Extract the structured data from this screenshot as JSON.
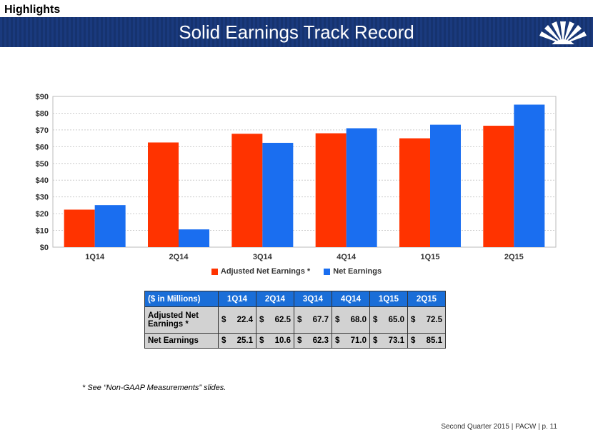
{
  "header": {
    "section": "Highlights",
    "title": "Solid Earnings Track Record"
  },
  "chart_data": {
    "type": "bar",
    "categories": [
      "1Q14",
      "2Q14",
      "3Q14",
      "4Q14",
      "1Q15",
      "2Q15"
    ],
    "series": [
      {
        "name": "Adjusted Net Earnings *",
        "color": "#ff3300",
        "values": [
          22.4,
          62.5,
          67.7,
          68.0,
          65.0,
          72.5
        ]
      },
      {
        "name": "Net Earnings",
        "color": "#1a6ef0",
        "values": [
          25.1,
          10.6,
          62.3,
          71.0,
          73.1,
          85.1
        ]
      }
    ],
    "ylim": [
      0,
      90
    ],
    "yticks": [
      "$0",
      "$10",
      "$20",
      "$30",
      "$40",
      "$50",
      "$60",
      "$70",
      "$80",
      "$90"
    ],
    "grid": true,
    "legend": "bottom"
  },
  "table": {
    "header": [
      "($ in Millions)",
      "1Q14",
      "2Q14",
      "3Q14",
      "4Q14",
      "1Q15",
      "2Q15"
    ],
    "currency": "$",
    "rows": [
      {
        "label": "Adjusted Net Earnings *",
        "values": [
          "22.4",
          "62.5",
          "67.7",
          "68.0",
          "65.0",
          "72.5"
        ]
      },
      {
        "label": "Net Earnings",
        "values": [
          "25.1",
          "10.6",
          "62.3",
          "71.0",
          "73.1",
          "85.1"
        ]
      }
    ]
  },
  "footnote": "* See “Non-GAAP Measurements” slides.",
  "footer": "Second Quarter 2015 | PACW | p. 11"
}
